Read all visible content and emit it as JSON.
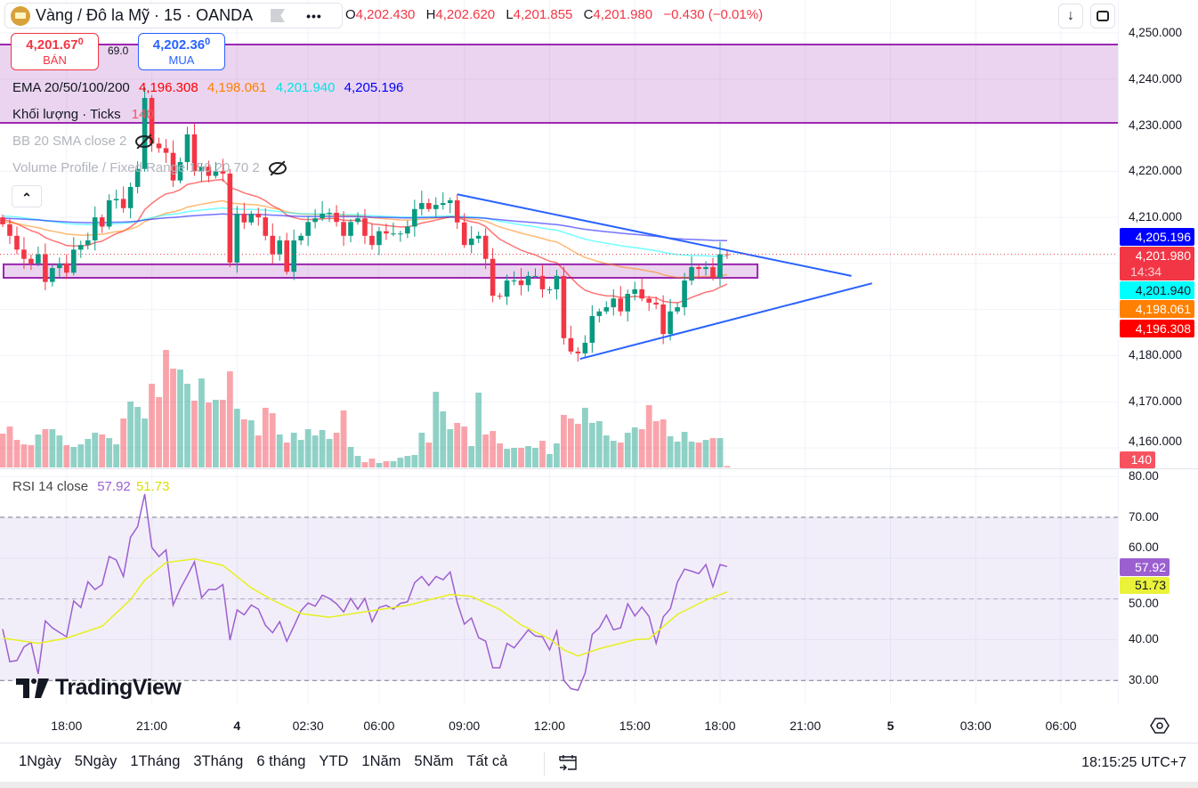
{
  "header": {
    "symbol_title": "Vàng / Đô la Mỹ · 15 · OANDA",
    "menu_label": "•••",
    "ohlc": {
      "o_label": "O",
      "o": "4,202.430",
      "h_label": "H",
      "h": "4,202.620",
      "l_label": "L",
      "l": "4,201.855",
      "c_label": "C",
      "c": "4,201.980",
      "change": "−0.430 (−0.01%)"
    }
  },
  "trade": {
    "sell_price": "4,201.67",
    "sell_sup": "0",
    "sell_label": "BÁN",
    "spread": "69.0",
    "buy_price": "4,202.36",
    "buy_sup": "0",
    "buy_label": "MUA"
  },
  "legend": {
    "ema_title": "EMA 20/50/100/200",
    "ema20": "4,196.308",
    "ema50": "4,198.061",
    "ema100": "4,201.940",
    "ema200": "4,205.196",
    "volume_title": "Khối lượng · Ticks",
    "volume_value": "140",
    "bb_title": "BB 20 SMA close 2",
    "vp_title": "Volume Profile / Fixed Range 150 20 70 2",
    "rsi_title": "RSI 14 close",
    "rsi_value": "57.92",
    "rsi_ma_value": "51.73"
  },
  "price_tags": {
    "ema200": "4,205.196",
    "last": "4,201.980",
    "countdown": "14:34",
    "ema100": "4,201.940",
    "ema50": "4,198.061",
    "ema20": "4,196.308",
    "volume": "140",
    "rsi": "57.92",
    "rsi_ma": "51.73"
  },
  "colors": {
    "up": "#089981",
    "down": "#f23645",
    "ema20": "#ff0000",
    "ema50": "#ff8000",
    "ema100": "#00ffff",
    "ema200": "#0000ff",
    "zone": "#9c27b0",
    "trendline": "#2962ff",
    "rsi": "#9c5fd0",
    "rsi_ma": "#e6f01e"
  },
  "bottom": {
    "ranges": [
      "1Ngày",
      "5Ngày",
      "1Tháng",
      "3Tháng",
      "6 tháng",
      "YTD",
      "1Năm",
      "5Năm",
      "Tất cả"
    ],
    "clock": "18:15:25 UTC+7"
  },
  "logo_text": "TradingView",
  "chart_data": {
    "type": "candlestick",
    "title": "Vàng / Đô la Mỹ · 15 · OANDA",
    "interval_minutes": 15,
    "price_axis": {
      "ticks": [
        "4,250.000",
        "4,240.000",
        "4,230.000",
        "4,220.000",
        "4,210.000",
        "4,180.000",
        "4,170.000",
        "4,160.000"
      ],
      "tick_values": [
        4250,
        4240,
        4230,
        4220,
        4210,
        4180,
        4170,
        4160
      ]
    },
    "time_axis": [
      {
        "label": "18:00",
        "bar": 9
      },
      {
        "label": "21:00",
        "bar": 21
      },
      {
        "label": "4",
        "bar": 33,
        "bold": true
      },
      {
        "label": "02:30",
        "bar": 43
      },
      {
        "label": "06:00",
        "bar": 53
      },
      {
        "label": "09:00",
        "bar": 65
      },
      {
        "label": "12:00",
        "bar": 77
      },
      {
        "label": "15:00",
        "bar": 89
      },
      {
        "label": "18:00",
        "bar": 101
      },
      {
        "label": "21:00",
        "bar": 113
      },
      {
        "label": "5",
        "bar": 125,
        "bold": true
      },
      {
        "label": "03:00",
        "bar": 137
      },
      {
        "label": "06:00",
        "bar": 149
      }
    ],
    "closes": [
      4208.5,
      4206.0,
      4203,
      4201,
      4200,
      4202,
      4196,
      4199,
      4200,
      4198,
      4203,
      4204,
      4205,
      4210,
      4208,
      4213.7,
      4214,
      4212,
      4216.6,
      4220.5,
      4235.9,
      4226,
      4225,
      4224,
      4218,
      4222,
      4228,
      4220,
      4221,
      4219,
      4220,
      4219.5,
      4200.2,
      4210.8,
      4208.9,
      4210.8,
      4210,
      4206,
      4202,
      4205,
      4198.2,
      4205,
      4206,
      4209,
      4209.8,
      4210.8,
      4211,
      4209,
      4206,
      4209,
      4209.8,
      4206,
      4204,
      4207,
      4206.5,
      4206.5,
      4206.5,
      4208,
      4211.8,
      4213.1,
      4211.8,
      4212.7,
      4213.1,
      4213.7,
      4208.9,
      4204,
      4205.4,
      4206,
      4201,
      4193,
      4192.8,
      4196.3,
      4196.3,
      4195.3,
      4197.3,
      4197.3,
      4194.4,
      4194.4,
      4197.3,
      4183.8,
      4180.9,
      4180.5,
      4182.8,
      4188.6,
      4189.6,
      4190.5,
      4192.4,
      4189.6,
      4193.4,
      4194.4,
      4192.4,
      4191.5,
      4191.1,
      4184.7,
      4189.6,
      4190.5,
      4196.3,
      4199.2,
      4198.8,
      4199.2,
      4196.9,
      4202,
      4201.98
    ],
    "volume": [
      3190,
      3860,
      2600,
      2180,
      2100,
      3110,
      3610,
      3610,
      3020,
      2100,
      1930,
      2180,
      2690,
      3280,
      3110,
      2770,
      2180,
      4620,
      6220,
      5710,
      4620,
      7900,
      6640,
      11090,
      9320,
      9240,
      7900,
      6300,
      8400,
      6130,
      6380,
      6380,
      9070,
      5540,
      4540,
      4450,
      3020,
      5630,
      5120,
      3110,
      2350,
      3280,
      2600,
      3610,
      3020,
      3530,
      2690,
      3280,
      5380,
      1930,
      1090,
      500,
      840,
      420,
      590,
      590,
      920,
      1090,
      1180,
      3280,
      2350,
      7140,
      5290,
      3610,
      4200,
      3860,
      2020,
      7060,
      3110,
      3440,
      2270,
      1760,
      1850,
      1850,
      2020,
      1850,
      2520,
      1260,
      2270,
      4960,
      4620,
      4120,
      5630,
      4200,
      4370,
      3020,
      2520,
      2350,
      3280,
      3780,
      3610,
      5880,
      4370,
      4540,
      2940,
      2440,
      3360,
      2440,
      2350,
      2600,
      2770,
      2770,
      140
    ],
    "ema_periods": [
      20,
      50,
      100,
      200
    ],
    "ema_seeds": [
      4209.5,
      4209.0,
      4210.3,
      4209.8
    ],
    "zones": [
      {
        "top": 4247.5,
        "bottom": 4230.5,
        "from_bar": -1,
        "to_bar": 160
      },
      {
        "top": 4199.8,
        "bottom": 4196.9,
        "from_bar": 0,
        "to_bar": 106.4
      }
    ],
    "trendlines": [
      {
        "from": [
          64,
          4215.0
        ],
        "to": [
          119.5,
          4197.3
        ]
      },
      {
        "from": [
          81.3,
          4179.3
        ],
        "to": [
          122.4,
          4195.7
        ]
      }
    ],
    "last_price": 4201.98,
    "rsi": {
      "period": 14,
      "axis_ticks": [
        "80.00",
        "70.00",
        "60.00",
        "50.00",
        "40.00",
        "30.00"
      ],
      "axis_values": [
        80,
        70,
        60,
        50,
        40,
        30
      ],
      "bands": [
        70,
        50,
        30
      ],
      "values": [
        42.6,
        34.6,
        34.9,
        38.2,
        39.3,
        31.6,
        44.6,
        42.9,
        41.8,
        40.7,
        49.5,
        47.9,
        54.2,
        52.3,
        53.5,
        60.4,
        59.5,
        55.5,
        65.1,
        67.7,
        75.7,
        62.6,
        60.4,
        62.0,
        48.5,
        52.5,
        55.7,
        59.1,
        50.3,
        52.3,
        52.3,
        53.5,
        39.9,
        47.3,
        46.1,
        48.5,
        47.5,
        43.5,
        41.7,
        44.4,
        39.6,
        43.3,
        47.1,
        49.0,
        48.2,
        50.9,
        50.1,
        48.8,
        46.8,
        50.1,
        47.5,
        50.1,
        44.4,
        47.9,
        48.4,
        47.5,
        48.9,
        49.3,
        54.0,
        55.5,
        53.3,
        55.5,
        54.7,
        56.6,
        49.1,
        43.8,
        45.3,
        40.5,
        39.6,
        33.1,
        33.1,
        39.1,
        38.0,
        40.2,
        42.4,
        40.9,
        40.7,
        37.5,
        42.1,
        30.0,
        28.0,
        27.6,
        31.8,
        41.3,
        42.9,
        46.0,
        42.4,
        42.9,
        48.8,
        45.8,
        48.0,
        45.7,
        39.1,
        45.6,
        47.6,
        54.1,
        57.3,
        56.8,
        56.2,
        58.4,
        53.0,
        58.4,
        57.92
      ],
      "ma_knots": [
        [
          0,
          40.4
        ],
        [
          5,
          39.1
        ],
        [
          9,
          40.4
        ],
        [
          14,
          43.3
        ],
        [
          18,
          49.8
        ],
        [
          20,
          54.6
        ],
        [
          23,
          58.9
        ],
        [
          27,
          59.8
        ],
        [
          31,
          58.2
        ],
        [
          35,
          52.7
        ],
        [
          38,
          49.7
        ],
        [
          42,
          46.4
        ],
        [
          46,
          45.5
        ],
        [
          52,
          47.1
        ],
        [
          57,
          48.4
        ],
        [
          63,
          51.1
        ],
        [
          66,
          50.6
        ],
        [
          70,
          47.4
        ],
        [
          73,
          43.6
        ],
        [
          77,
          40.2
        ],
        [
          79,
          37.5
        ],
        [
          81,
          36.0
        ],
        [
          84,
          37.8
        ],
        [
          89,
          40.0
        ],
        [
          91,
          40.2
        ],
        [
          95,
          46.2
        ],
        [
          99,
          49.7
        ],
        [
          102,
          51.73
        ]
      ]
    }
  }
}
